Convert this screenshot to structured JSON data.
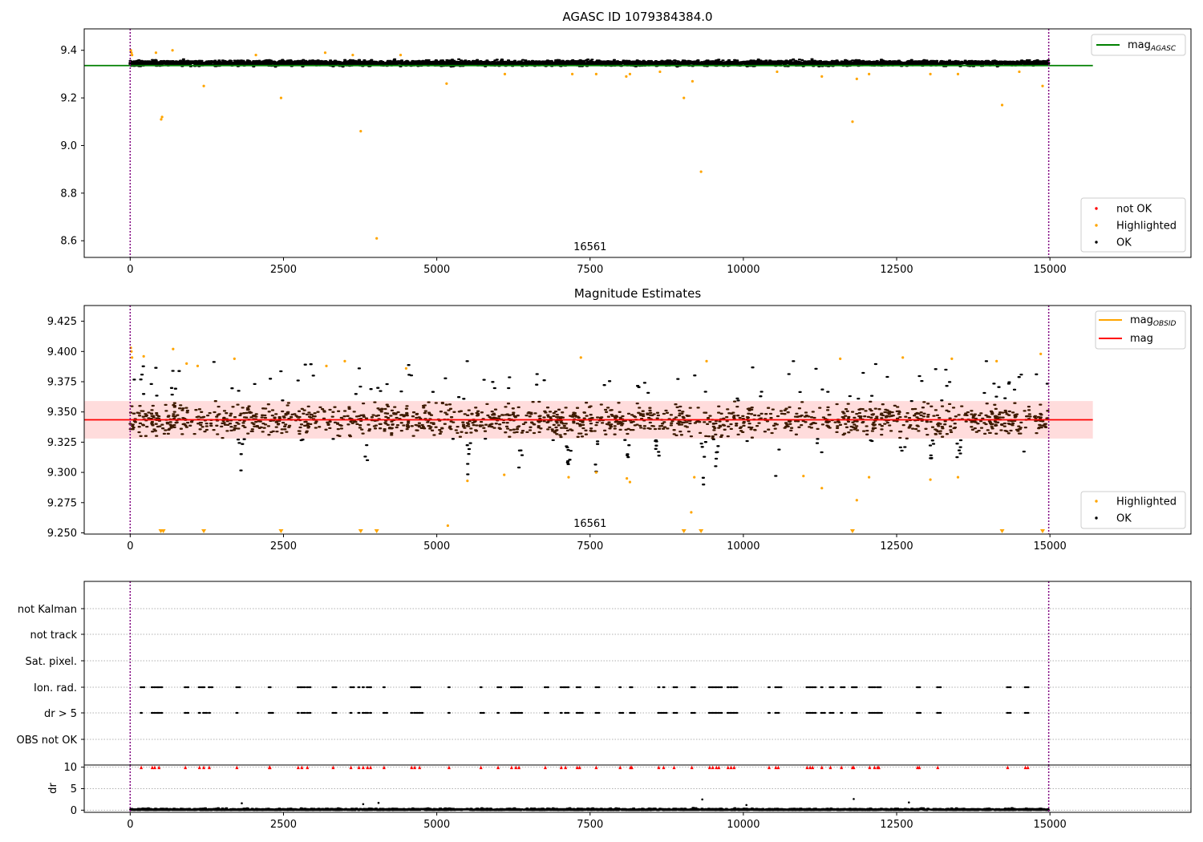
{
  "chart_data": [
    {
      "type": "scatter",
      "title": "AGASC ID 1079384384.0",
      "xlabel": "",
      "ylabel": "",
      "xlim": [
        -750,
        17300
      ],
      "ylim": [
        8.53,
        9.49
      ],
      "x_ticks": [
        "0",
        "2500",
        "5000",
        "7500",
        "10000",
        "12500",
        "15000"
      ],
      "x_tick_values": [
        0,
        2500,
        5000,
        7500,
        10000,
        12500,
        15000
      ],
      "y_ticks": [
        "8.6",
        "8.8",
        "9.0",
        "9.2",
        "9.4"
      ],
      "y_tick_values": [
        8.6,
        8.8,
        9.0,
        9.2,
        9.4
      ],
      "obs_label": "16561",
      "obs_start": 0,
      "obs_end": 14980,
      "mag_agasc": 9.336,
      "mag_agasc_xrange": [
        -750,
        15700
      ],
      "legend_lines": [
        {
          "name": "mag",
          "sub": "AGASC",
          "color": "#008000"
        }
      ],
      "legend_points": [
        {
          "name": "not OK",
          "color": "#ff0000"
        },
        {
          "name": "Highlighted",
          "color": "#ffa500"
        },
        {
          "name": "OK",
          "color": "#000000"
        }
      ],
      "ok_band": {
        "x": [
          0,
          14980
        ],
        "y_center": 9.346,
        "y_spread": 0.02
      },
      "highlighted_points": [
        [
          10,
          9.4
        ],
        [
          20,
          9.39
        ],
        [
          30,
          9.38
        ],
        [
          505,
          9.11
        ],
        [
          520,
          9.12
        ],
        [
          1200,
          9.25
        ],
        [
          2460,
          9.2
        ],
        [
          3760,
          9.06
        ],
        [
          4020,
          8.61
        ],
        [
          5160,
          9.26
        ],
        [
          9030,
          9.2
        ],
        [
          9170,
          9.27
        ],
        [
          9310,
          8.89
        ],
        [
          11780,
          9.1
        ],
        [
          11850,
          9.28
        ],
        [
          14220,
          9.17
        ],
        [
          14880,
          9.25
        ],
        [
          420,
          9.39
        ],
        [
          690,
          9.4
        ],
        [
          2050,
          9.38
        ],
        [
          3180,
          9.39
        ],
        [
          3630,
          9.38
        ],
        [
          4410,
          9.38
        ],
        [
          6110,
          9.3
        ],
        [
          7210,
          9.3
        ],
        [
          7600,
          9.3
        ],
        [
          8090,
          9.29
        ],
        [
          8150,
          9.3
        ],
        [
          8640,
          9.31
        ],
        [
          10550,
          9.31
        ],
        [
          11280,
          9.29
        ],
        [
          12050,
          9.3
        ],
        [
          13050,
          9.3
        ],
        [
          13500,
          9.3
        ],
        [
          14500,
          9.31
        ]
      ],
      "colors": {
        "ok": "#000000",
        "highlighted": "#ffa500",
        "not_ok": "#ff0000",
        "obs_line": "#800080"
      }
    },
    {
      "type": "scatter",
      "title": "Magnitude Estimates",
      "xlabel": "",
      "ylabel": "",
      "xlim": [
        -750,
        17300
      ],
      "ylim": [
        9.249,
        9.438
      ],
      "x_ticks": [
        "0",
        "2500",
        "5000",
        "7500",
        "10000",
        "12500",
        "15000"
      ],
      "x_tick_values": [
        0,
        2500,
        5000,
        7500,
        10000,
        12500,
        15000
      ],
      "y_ticks": [
        "9.250",
        "9.275",
        "9.300",
        "9.325",
        "9.350",
        "9.375",
        "9.400",
        "9.425"
      ],
      "y_tick_values": [
        9.25,
        9.275,
        9.3,
        9.325,
        9.35,
        9.375,
        9.4,
        9.425
      ],
      "obs_label": "16561",
      "obs_start": 0,
      "obs_end": 14980,
      "mag": 9.3435,
      "mag_band": [
        9.328,
        9.359
      ],
      "mag_obsid_xrange": [
        -750,
        15700
      ],
      "legend_lines": [
        {
          "name": "mag",
          "sub": "OBSID",
          "color": "#ffa500"
        },
        {
          "name": "mag",
          "sub": "",
          "color": "#ff0000"
        }
      ],
      "legend_points": [
        {
          "name": "Highlighted",
          "color": "#ffa500"
        },
        {
          "name": "OK",
          "color": "#000000"
        }
      ],
      "dips": [
        1800,
        3850,
        5500,
        6350,
        7150,
        7600,
        8100,
        8600,
        9350,
        9550,
        10550,
        11250,
        12050,
        12600,
        13050,
        13500,
        14550
      ],
      "highlighted_points": [
        [
          10,
          9.403
        ],
        [
          20,
          9.4
        ],
        [
          30,
          9.395
        ],
        [
          220,
          9.396
        ],
        [
          700,
          9.402
        ],
        [
          920,
          9.39
        ],
        [
          1100,
          9.388
        ],
        [
          1700,
          9.394
        ],
        [
          3200,
          9.388
        ],
        [
          3500,
          9.392
        ],
        [
          4500,
          9.386
        ],
        [
          5180,
          9.256
        ],
        [
          5500,
          9.293
        ],
        [
          6100,
          9.298
        ],
        [
          7150,
          9.296
        ],
        [
          7350,
          9.395
        ],
        [
          7600,
          9.3
        ],
        [
          8100,
          9.295
        ],
        [
          8150,
          9.292
        ],
        [
          9150,
          9.267
        ],
        [
          9200,
          9.296
        ],
        [
          9400,
          9.392
        ],
        [
          10980,
          9.297
        ],
        [
          11280,
          9.287
        ],
        [
          11580,
          9.394
        ],
        [
          11850,
          9.277
        ],
        [
          12050,
          9.296
        ],
        [
          12600,
          9.395
        ],
        [
          13050,
          9.294
        ],
        [
          13400,
          9.394
        ],
        [
          13500,
          9.296
        ],
        [
          14130,
          9.392
        ],
        [
          14850,
          9.398
        ]
      ],
      "clipped_points": [
        500,
        540,
        1200,
        2460,
        3760,
        4020,
        9030,
        9310,
        11780,
        14220,
        14880
      ],
      "colors": {
        "ok": "#000000",
        "ok_band": "#3d1a00",
        "highlighted": "#ffa500",
        "mag_line": "#ff0000",
        "mag_band": "#ffdcdc",
        "obs_line": "#800080"
      }
    },
    {
      "type": "scatter",
      "title": "",
      "xlabel": "",
      "ylabel": "",
      "xlim": [
        -750,
        17300
      ],
      "flag_labels": [
        "not Kalman",
        "not track",
        "Sat. pixel.",
        "Ion. rad.",
        "dr > 5",
        "OBS not OK"
      ],
      "obs_start": 0,
      "obs_end": 14980,
      "flag_times": [
        180,
        360,
        400,
        470,
        900,
        1130,
        1200,
        1290,
        1740,
        2270,
        2280,
        2740,
        2800,
        2890,
        3310,
        3600,
        3730,
        3800,
        3870,
        3920,
        4140,
        4590,
        4640,
        4720,
        5200,
        5720,
        6000,
        6220,
        6290,
        6340,
        6770,
        7030,
        7100,
        7290,
        7330,
        7600,
        7990,
        8160,
        8180,
        8620,
        8700,
        8870,
        9160,
        9450,
        9500,
        9560,
        9600,
        9750,
        9800,
        9850,
        10420,
        10530,
        10570,
        11040,
        11090,
        11130,
        11280,
        11420,
        11600,
        11780,
        11800,
        12060,
        12140,
        12190,
        12210,
        12840,
        12870,
        13170,
        14310,
        14600,
        14640
      ]
    },
    {
      "type": "scatter",
      "title": "",
      "xlabel": "",
      "ylabel": "dr",
      "xlim": [
        -750,
        17300
      ],
      "ylim": [
        -0.5,
        10.5
      ],
      "x_ticks": [
        "0",
        "2500",
        "5000",
        "7500",
        "10000",
        "12500",
        "15000"
      ],
      "x_tick_values": [
        0,
        2500,
        5000,
        7500,
        10000,
        12500,
        15000
      ],
      "y_ticks": [
        "0",
        "5",
        "10"
      ],
      "y_tick_values": [
        0,
        5,
        10
      ],
      "obs_start": 0,
      "obs_end": 14980,
      "outliers": [
        [
          1820,
          1.6
        ],
        [
          3800,
          1.4
        ],
        [
          4050,
          1.7
        ],
        [
          9330,
          2.5
        ],
        [
          11800,
          2.6
        ],
        [
          12700,
          1.8
        ],
        [
          10050,
          1.2
        ]
      ],
      "colors": {
        "ok": "#000000",
        "flag": "#ff0000",
        "obs_line": "#800080"
      }
    }
  ]
}
